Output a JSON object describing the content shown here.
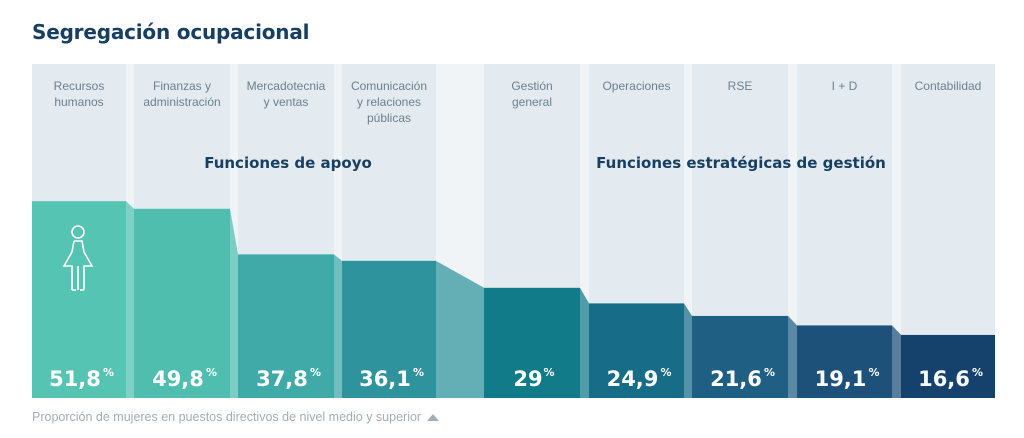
{
  "title": "Segregación ocupacional",
  "footnote": "Proporción de mujeres en puestos directivos de nivel medio y superior",
  "chart_data": {
    "type": "bar",
    "title": "Segregación ocupacional",
    "unit": "%",
    "groups": [
      {
        "label": "Funciones de apoyo",
        "categories": [
          "Recursos humanos",
          "Finanzas y administración",
          "Mercadotecnia y ventas",
          "Comunicación y relaciones públicas"
        ]
      },
      {
        "label": "Funciones estratégicas de gestión",
        "categories": [
          "Gestión general",
          "Operaciones",
          "RSE",
          "I + D",
          "Contabilidad"
        ]
      }
    ],
    "categories": [
      {
        "lines": [
          "Recursos",
          "humanos"
        ],
        "value": 51.8,
        "label": "51,8",
        "color": "#55c4b2"
      },
      {
        "lines": [
          "Finanzas y",
          "administración"
        ],
        "value": 49.8,
        "label": "49,8",
        "color": "#4fbeaf"
      },
      {
        "lines": [
          "Mercadotecnia",
          "y ventas"
        ],
        "value": 37.8,
        "label": "37,8",
        "color": "#3faaa7"
      },
      {
        "lines": [
          "Comunicación",
          "y relaciones",
          "públicas"
        ],
        "value": 36.1,
        "label": "36,1",
        "color": "#2e939c"
      },
      {
        "lines": [
          "Gestión",
          "general"
        ],
        "value": 29,
        "label": "29",
        "color": "#127b8a"
      },
      {
        "lines": [
          "Operaciones"
        ],
        "value": 24.9,
        "label": "24,9",
        "color": "#176c88"
      },
      {
        "lines": [
          "RSE"
        ],
        "value": 21.6,
        "label": "21,6",
        "color": "#1f5f83"
      },
      {
        "lines": [
          "I + D"
        ],
        "value": 19.1,
        "label": "19,1",
        "color": "#1e5179"
      },
      {
        "lines": [
          "Contabilidad"
        ],
        "value": 16.6,
        "label": "16,6",
        "color": "#14426c"
      }
    ],
    "icon": "woman-icon",
    "background_color": "#e4ebf0",
    "gap_color": "#f0f4f7"
  }
}
